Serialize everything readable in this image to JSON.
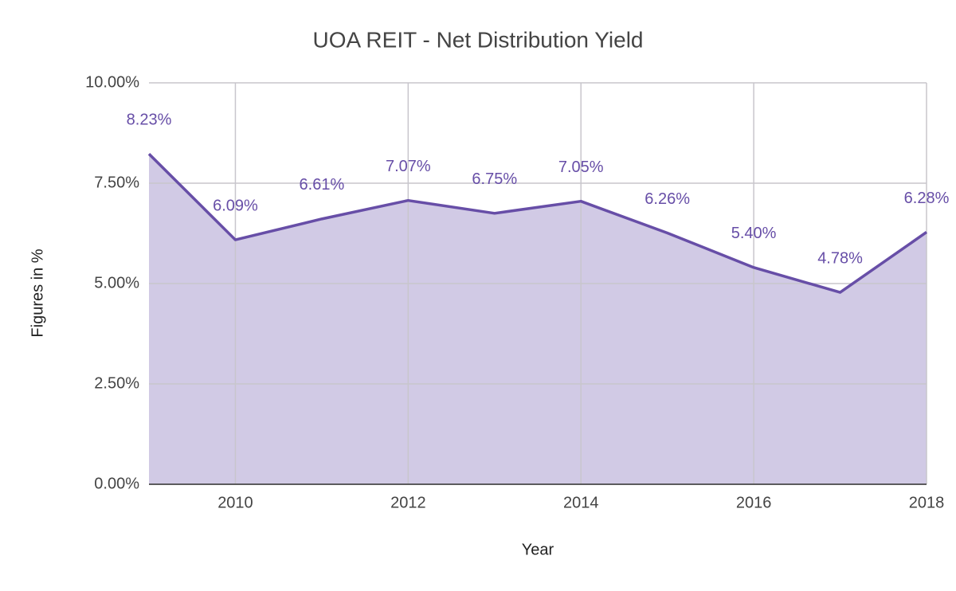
{
  "chart_data": {
    "type": "area",
    "title": "UOA REIT - Net Distribution Yield",
    "x_label": "Year",
    "y_label": "Figures in %",
    "x": [
      2009,
      2010,
      2011,
      2012,
      2013,
      2014,
      2015,
      2016,
      2017,
      2018
    ],
    "series": [
      {
        "name": "Net Distribution Yield",
        "color": "#674ea7",
        "fill": "#d1cae5",
        "values": [
          8.23,
          6.09,
          6.61,
          7.07,
          6.75,
          7.05,
          6.26,
          5.4,
          4.78,
          6.28
        ],
        "value_labels": [
          "8.23%",
          "6.09%",
          "6.61%",
          "7.07%",
          "6.75%",
          "7.05%",
          "6.26%",
          "5.40%",
          "4.78%",
          "6.28%"
        ]
      }
    ],
    "xlim": [
      2009,
      2018
    ],
    "xticks": [
      2010,
      2012,
      2014,
      2016,
      2018
    ],
    "ylim": [
      0,
      10
    ],
    "yticks": [
      {
        "value": 0,
        "label": "0.00%"
      },
      {
        "value": 2.5,
        "label": "2.50%"
      },
      {
        "value": 5,
        "label": "5.00%"
      },
      {
        "value": 7.5,
        "label": "7.50%"
      },
      {
        "value": 10,
        "label": "10.00%"
      }
    ],
    "grid": true
  }
}
